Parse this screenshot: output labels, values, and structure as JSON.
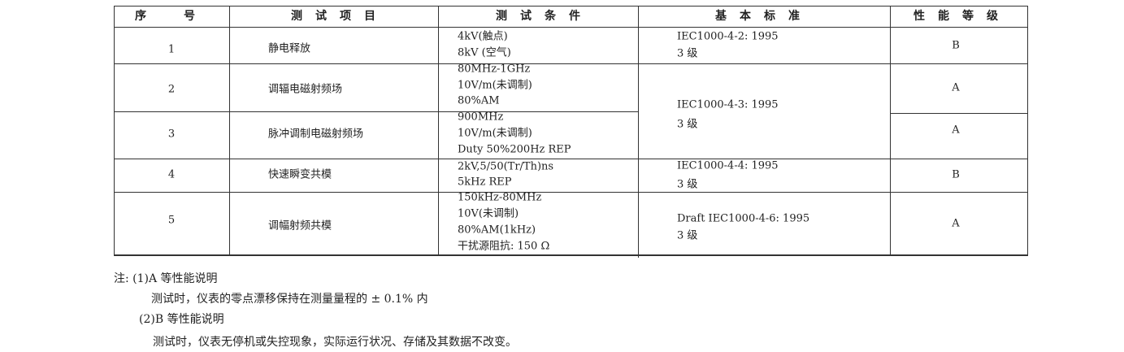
{
  "table": {
    "headers": [
      "序　号",
      "测试项目",
      "测试条件",
      "基本标准",
      "性能等级"
    ],
    "rows": [
      {
        "no": "1",
        "item": "静电释放",
        "conditions": [
          "4kV(触点)",
          "8kV (空气)"
        ],
        "standard": [
          "IEC1000-4-2: 1995",
          "3 级"
        ],
        "grade": "B"
      },
      {
        "no": "2",
        "item": "调辐电磁射频场",
        "conditions": [
          "80MHz-1GHz",
          "10V/m(未调制)",
          "80%AM"
        ],
        "standard": [
          "IEC1000-4-3: 1995",
          "3 级"
        ],
        "grade": "A"
      },
      {
        "no": "3",
        "item": "脉冲调制电磁射频场",
        "conditions": [
          "900MHz",
          "10V/m(未调制)",
          "Duty 50%200Hz REP"
        ],
        "standard": null,
        "grade": "A"
      },
      {
        "no": "4",
        "item": "快速瞬变共模",
        "conditions": [
          "2kV,5/50(Tr/Th)ns",
          "5kHz REP"
        ],
        "standard": [
          "IEC1000-4-4: 1995",
          "3 级"
        ],
        "grade": "B"
      },
      {
        "no": "5",
        "item": "调幅射频共模",
        "conditions": [
          "150kHz-80MHz",
          "10V(未调制)",
          "80%AM(1kHz)",
          "干扰源阻抗: 150 Ω"
        ],
        "standard": [
          "Draft IEC1000-4-6: 1995",
          "3 级"
        ],
        "grade": "A"
      }
    ]
  },
  "notes": [
    "注: (1)A 等性能说明",
    "测试时，仪表的零点漂移保持在测量量程的 ± 0.1% 内",
    "(2)B 等性能说明",
    "测试时，仪表无停机或失控现象，实际运行状况、存储及其数据不改变。"
  ]
}
